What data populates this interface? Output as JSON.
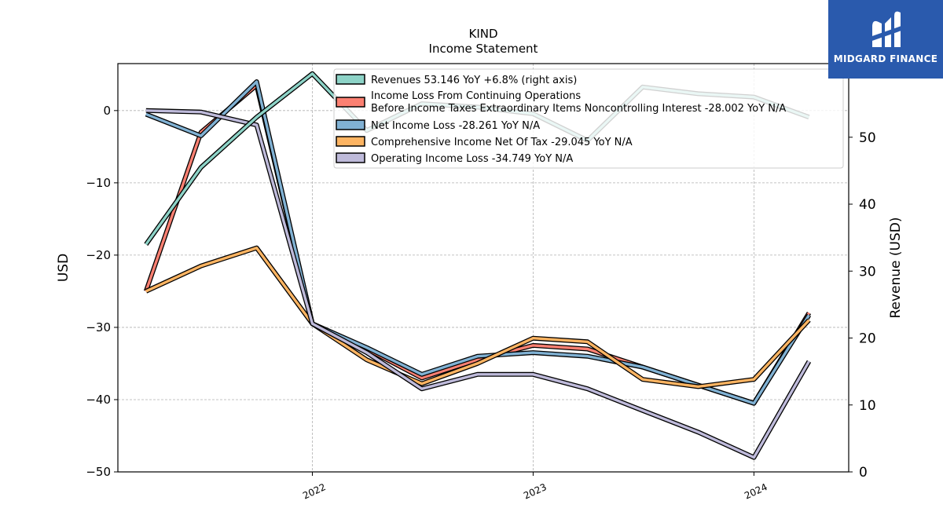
{
  "brand": {
    "name": "MIDGARD FINANCE",
    "color": "#2a5aad"
  },
  "chart_data": {
    "type": "line",
    "title": "KIND",
    "subtitle": "Income Statement",
    "ylabel": "USD",
    "y2label": "Revenue (USD)",
    "ylim": [
      -50,
      6.5
    ],
    "y2lim": [
      0,
      61
    ],
    "yticks": [
      0,
      -10,
      -20,
      -30,
      -40,
      -50
    ],
    "y2ticks": [
      0,
      10,
      20,
      30,
      40,
      50
    ],
    "xticks": [
      "2022",
      "2023",
      "2024"
    ],
    "x": [
      "2021-04-01",
      "2021-07-01",
      "2021-10-01",
      "2022-01-01",
      "2022-04-01",
      "2022-07-01",
      "2022-10-01",
      "2023-01-01",
      "2023-04-01",
      "2023-07-01",
      "2023-10-01",
      "2024-01-01",
      "2024-04-01"
    ],
    "grid": true,
    "legend_position": "top",
    "series": [
      {
        "name": "Revenues  53.146 YoY +6.8% (right axis)",
        "axis": "right",
        "color": "#8dd3c7",
        "values": [
          34,
          45.5,
          53,
          59.5,
          51,
          55,
          54.5,
          53.5,
          49.5,
          57.5,
          56.5,
          56,
          53
        ]
      },
      {
        "name": "Income Loss From Continuing Operations Before Income Taxes Extraordinary Items Noncontrolling Interest  -28.002 YoY N/A",
        "legend_lines": [
          "Income Loss From Continuing Operations",
          "Before Income Taxes Extraordinary Items Noncontrolling Interest  -28.002 YoY N/A"
        ],
        "axis": "left",
        "color": "#fb8072",
        "values": [
          -25,
          -3,
          3.5,
          -29.5,
          -33,
          -37,
          -34.5,
          -32.5,
          -33,
          -35.5,
          -38,
          -40.5,
          -28
        ]
      },
      {
        "name": "Net Income Loss  -28.261 YoY N/A",
        "axis": "left",
        "color": "#80b1d3",
        "values": [
          -0.5,
          -3.5,
          4,
          -29.5,
          -32.8,
          -36.5,
          -34,
          -33.5,
          -34,
          -35.5,
          -38,
          -40.5,
          -28.3
        ]
      },
      {
        "name": "Comprehensive Income Net Of Tax  -29.045 YoY N/A",
        "axis": "left",
        "color": "#fdb462",
        "values": [
          -25,
          -21.5,
          -19,
          -29.5,
          -34.5,
          -37.8,
          -35,
          -31.5,
          -32,
          -37.2,
          -38.2,
          -37.2,
          -29
        ]
      },
      {
        "name": "Operating Income Loss  -34.749 YoY N/A",
        "axis": "left",
        "color": "#bebada",
        "values": [
          0,
          -0.2,
          -2,
          -29.5,
          -33.5,
          -38.5,
          -36.5,
          -36.5,
          -38.5,
          -41.5,
          -44.5,
          -48,
          -34.7
        ]
      }
    ]
  }
}
